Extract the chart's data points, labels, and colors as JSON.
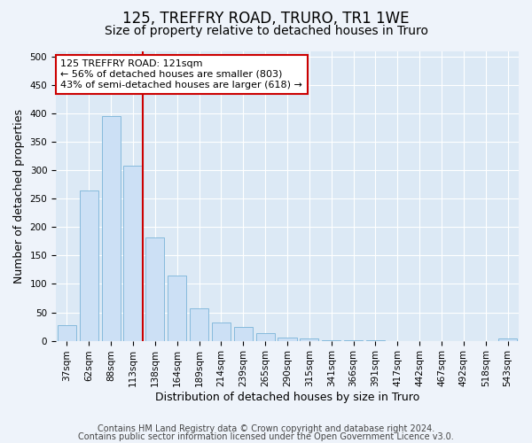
{
  "title": "125, TREFFRY ROAD, TRURO, TR1 1WE",
  "subtitle": "Size of property relative to detached houses in Truro",
  "xlabel": "Distribution of detached houses by size in Truro",
  "ylabel": "Number of detached properties",
  "footer_line1": "Contains HM Land Registry data © Crown copyright and database right 2024.",
  "footer_line2": "Contains public sector information licensed under the Open Government Licence v3.0.",
  "categories": [
    "37sqm",
    "62sqm",
    "88sqm",
    "113sqm",
    "138sqm",
    "164sqm",
    "189sqm",
    "214sqm",
    "239sqm",
    "265sqm",
    "290sqm",
    "315sqm",
    "341sqm",
    "366sqm",
    "391sqm",
    "417sqm",
    "442sqm",
    "467sqm",
    "492sqm",
    "518sqm",
    "543sqm"
  ],
  "bar_values": [
    27,
    265,
    395,
    308,
    182,
    115,
    57,
    32,
    24,
    13,
    6,
    4,
    1,
    1,
    1,
    0,
    0,
    0,
    0,
    0,
    4
  ],
  "bar_color": "#cce0f5",
  "bar_edge_color": "#7ab4d8",
  "ylim": [
    0,
    510
  ],
  "yticks": [
    0,
    50,
    100,
    150,
    200,
    250,
    300,
    350,
    400,
    450,
    500
  ],
  "red_line_index": 3,
  "annotation_text": "125 TREFFRY ROAD: 121sqm\n← 56% of detached houses are smaller (803)\n43% of semi-detached houses are larger (618) →",
  "annotation_box_color": "#ffffff",
  "annotation_box_edge_color": "#cc0000",
  "red_line_color": "#cc0000",
  "background_color": "#eef3fa",
  "plot_bg_color": "#dce9f5",
  "grid_color": "#ffffff",
  "title_fontsize": 12,
  "subtitle_fontsize": 10,
  "axis_label_fontsize": 9,
  "tick_fontsize": 7.5,
  "footer_fontsize": 7
}
